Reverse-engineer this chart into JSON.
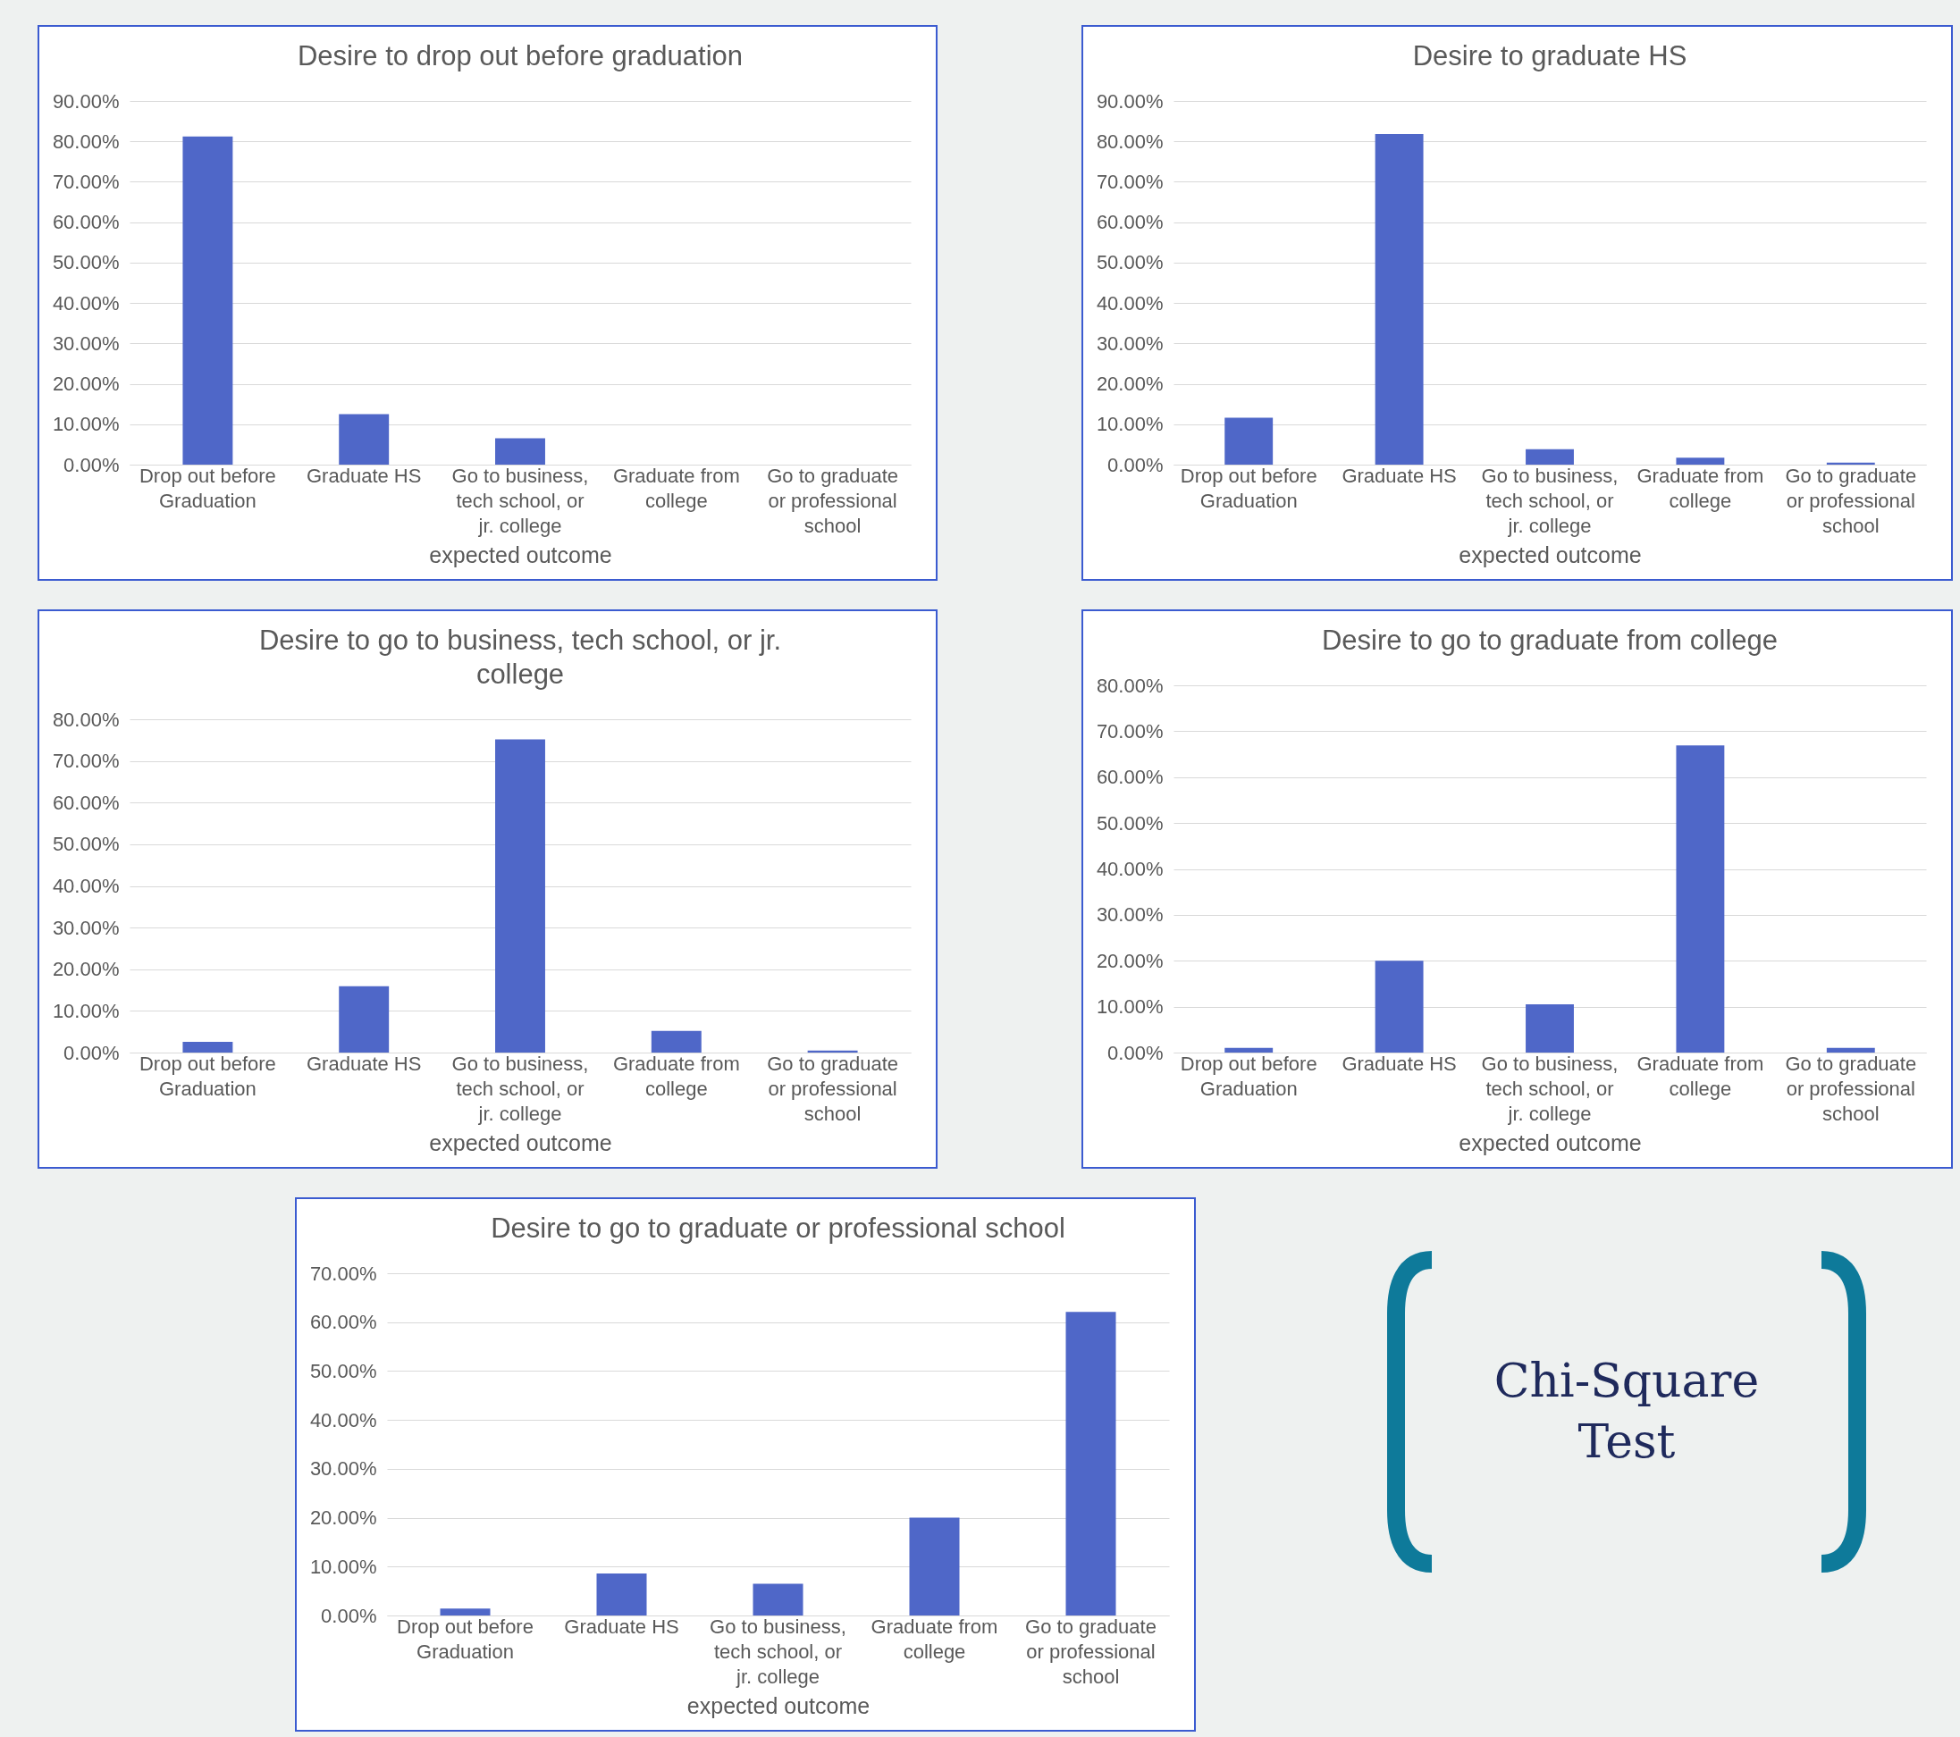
{
  "chart_data": [
    {
      "type": "bar",
      "title": "Desire to drop out before graduation",
      "xlabel": "expected outcome",
      "categories": [
        "Drop out before Graduation",
        "Graduate HS",
        "Go to business, tech school, or jr. college",
        "Graduate from college",
        "Go to graduate or professional school"
      ],
      "values": [
        81.2,
        12.5,
        6.5,
        0,
        0
      ],
      "color": "#4f67c8",
      "ylim": [
        0,
        90
      ],
      "yticks": [
        {
          "value": 0,
          "label": "0.00%"
        },
        {
          "value": 10,
          "label": "10.00%"
        },
        {
          "value": 20,
          "label": "20.00%"
        },
        {
          "value": 30,
          "label": "30.00%"
        },
        {
          "value": 40,
          "label": "40.00%"
        },
        {
          "value": 50,
          "label": "50.00%"
        },
        {
          "value": 60,
          "label": "60.00%"
        },
        {
          "value": 70,
          "label": "70.00%"
        },
        {
          "value": 80,
          "label": "80.00%"
        },
        {
          "value": 90,
          "label": "90.00%"
        }
      ],
      "grid": "y"
    },
    {
      "type": "bar",
      "title": "Desire to graduate HS",
      "xlabel": "expected outcome",
      "categories": [
        "Drop out before Graduation",
        "Graduate HS",
        "Go to business, tech school, or jr. college",
        "Graduate from college",
        "Go to graduate or professional school"
      ],
      "values": [
        11.6,
        81.8,
        3.8,
        1.7,
        0.5
      ],
      "color": "#4f67c8",
      "ylim": [
        0,
        90
      ],
      "yticks": [
        {
          "value": 0,
          "label": "0.00%"
        },
        {
          "value": 10,
          "label": "10.00%"
        },
        {
          "value": 20,
          "label": "20.00%"
        },
        {
          "value": 30,
          "label": "30.00%"
        },
        {
          "value": 40,
          "label": "40.00%"
        },
        {
          "value": 50,
          "label": "50.00%"
        },
        {
          "value": 60,
          "label": "60.00%"
        },
        {
          "value": 70,
          "label": "70.00%"
        },
        {
          "value": 80,
          "label": "80.00%"
        },
        {
          "value": 90,
          "label": "90.00%"
        }
      ],
      "grid": "y"
    },
    {
      "type": "bar",
      "title": "Desire to go to business, tech school, or jr. college",
      "xlabel": "expected outcome",
      "categories": [
        "Drop out before Graduation",
        "Graduate HS",
        "Go to business, tech school, or jr. college",
        "Graduate from college",
        "Go to graduate or professional school"
      ],
      "values": [
        2.6,
        15.9,
        75.2,
        5.2,
        0.5
      ],
      "color": "#4f67c8",
      "ylim": [
        0,
        80
      ],
      "yticks": [
        {
          "value": 0,
          "label": "0.00%"
        },
        {
          "value": 10,
          "label": "10.00%"
        },
        {
          "value": 20,
          "label": "20.00%"
        },
        {
          "value": 30,
          "label": "30.00%"
        },
        {
          "value": 40,
          "label": "40.00%"
        },
        {
          "value": 50,
          "label": "50.00%"
        },
        {
          "value": 60,
          "label": "60.00%"
        },
        {
          "value": 70,
          "label": "70.00%"
        },
        {
          "value": 80,
          "label": "80.00%"
        }
      ],
      "grid": "y"
    },
    {
      "type": "bar",
      "title": "Desire to go to graduate from college",
      "xlabel": "expected outcome",
      "categories": [
        "Drop out before Graduation",
        "Graduate HS",
        "Go to business, tech school, or jr. college",
        "Graduate from college",
        "Go to graduate or professional school"
      ],
      "values": [
        1.0,
        20.0,
        10.5,
        66.9,
        1.0
      ],
      "color": "#4f67c8",
      "ylim": [
        0,
        80
      ],
      "yticks": [
        {
          "value": 0,
          "label": "0.00%"
        },
        {
          "value": 10,
          "label": "10.00%"
        },
        {
          "value": 20,
          "label": "20.00%"
        },
        {
          "value": 30,
          "label": "30.00%"
        },
        {
          "value": 40,
          "label": "40.00%"
        },
        {
          "value": 50,
          "label": "50.00%"
        },
        {
          "value": 60,
          "label": "60.00%"
        },
        {
          "value": 70,
          "label": "70.00%"
        },
        {
          "value": 80,
          "label": "80.00%"
        }
      ],
      "grid": "y"
    },
    {
      "type": "bar",
      "title": "Desire to go to graduate or professional school",
      "xlabel": "expected outcome",
      "categories": [
        "Drop out before Graduation",
        "Graduate HS",
        "Go to business, tech school, or jr. college",
        "Graduate from college",
        "Go to graduate or professional school"
      ],
      "values": [
        1.4,
        8.6,
        6.5,
        20.0,
        62.1
      ],
      "color": "#4f67c8",
      "ylim": [
        0,
        70
      ],
      "yticks": [
        {
          "value": 0,
          "label": "0.00%"
        },
        {
          "value": 10,
          "label": "10.00%"
        },
        {
          "value": 20,
          "label": "20.00%"
        },
        {
          "value": 30,
          "label": "30.00%"
        },
        {
          "value": 40,
          "label": "40.00%"
        },
        {
          "value": 50,
          "label": "50.00%"
        },
        {
          "value": 60,
          "label": "60.00%"
        },
        {
          "value": 70,
          "label": "70.00%"
        }
      ],
      "grid": "y"
    },
    {
      "type": "other",
      "title": "Chi-Square Test"
    }
  ]
}
